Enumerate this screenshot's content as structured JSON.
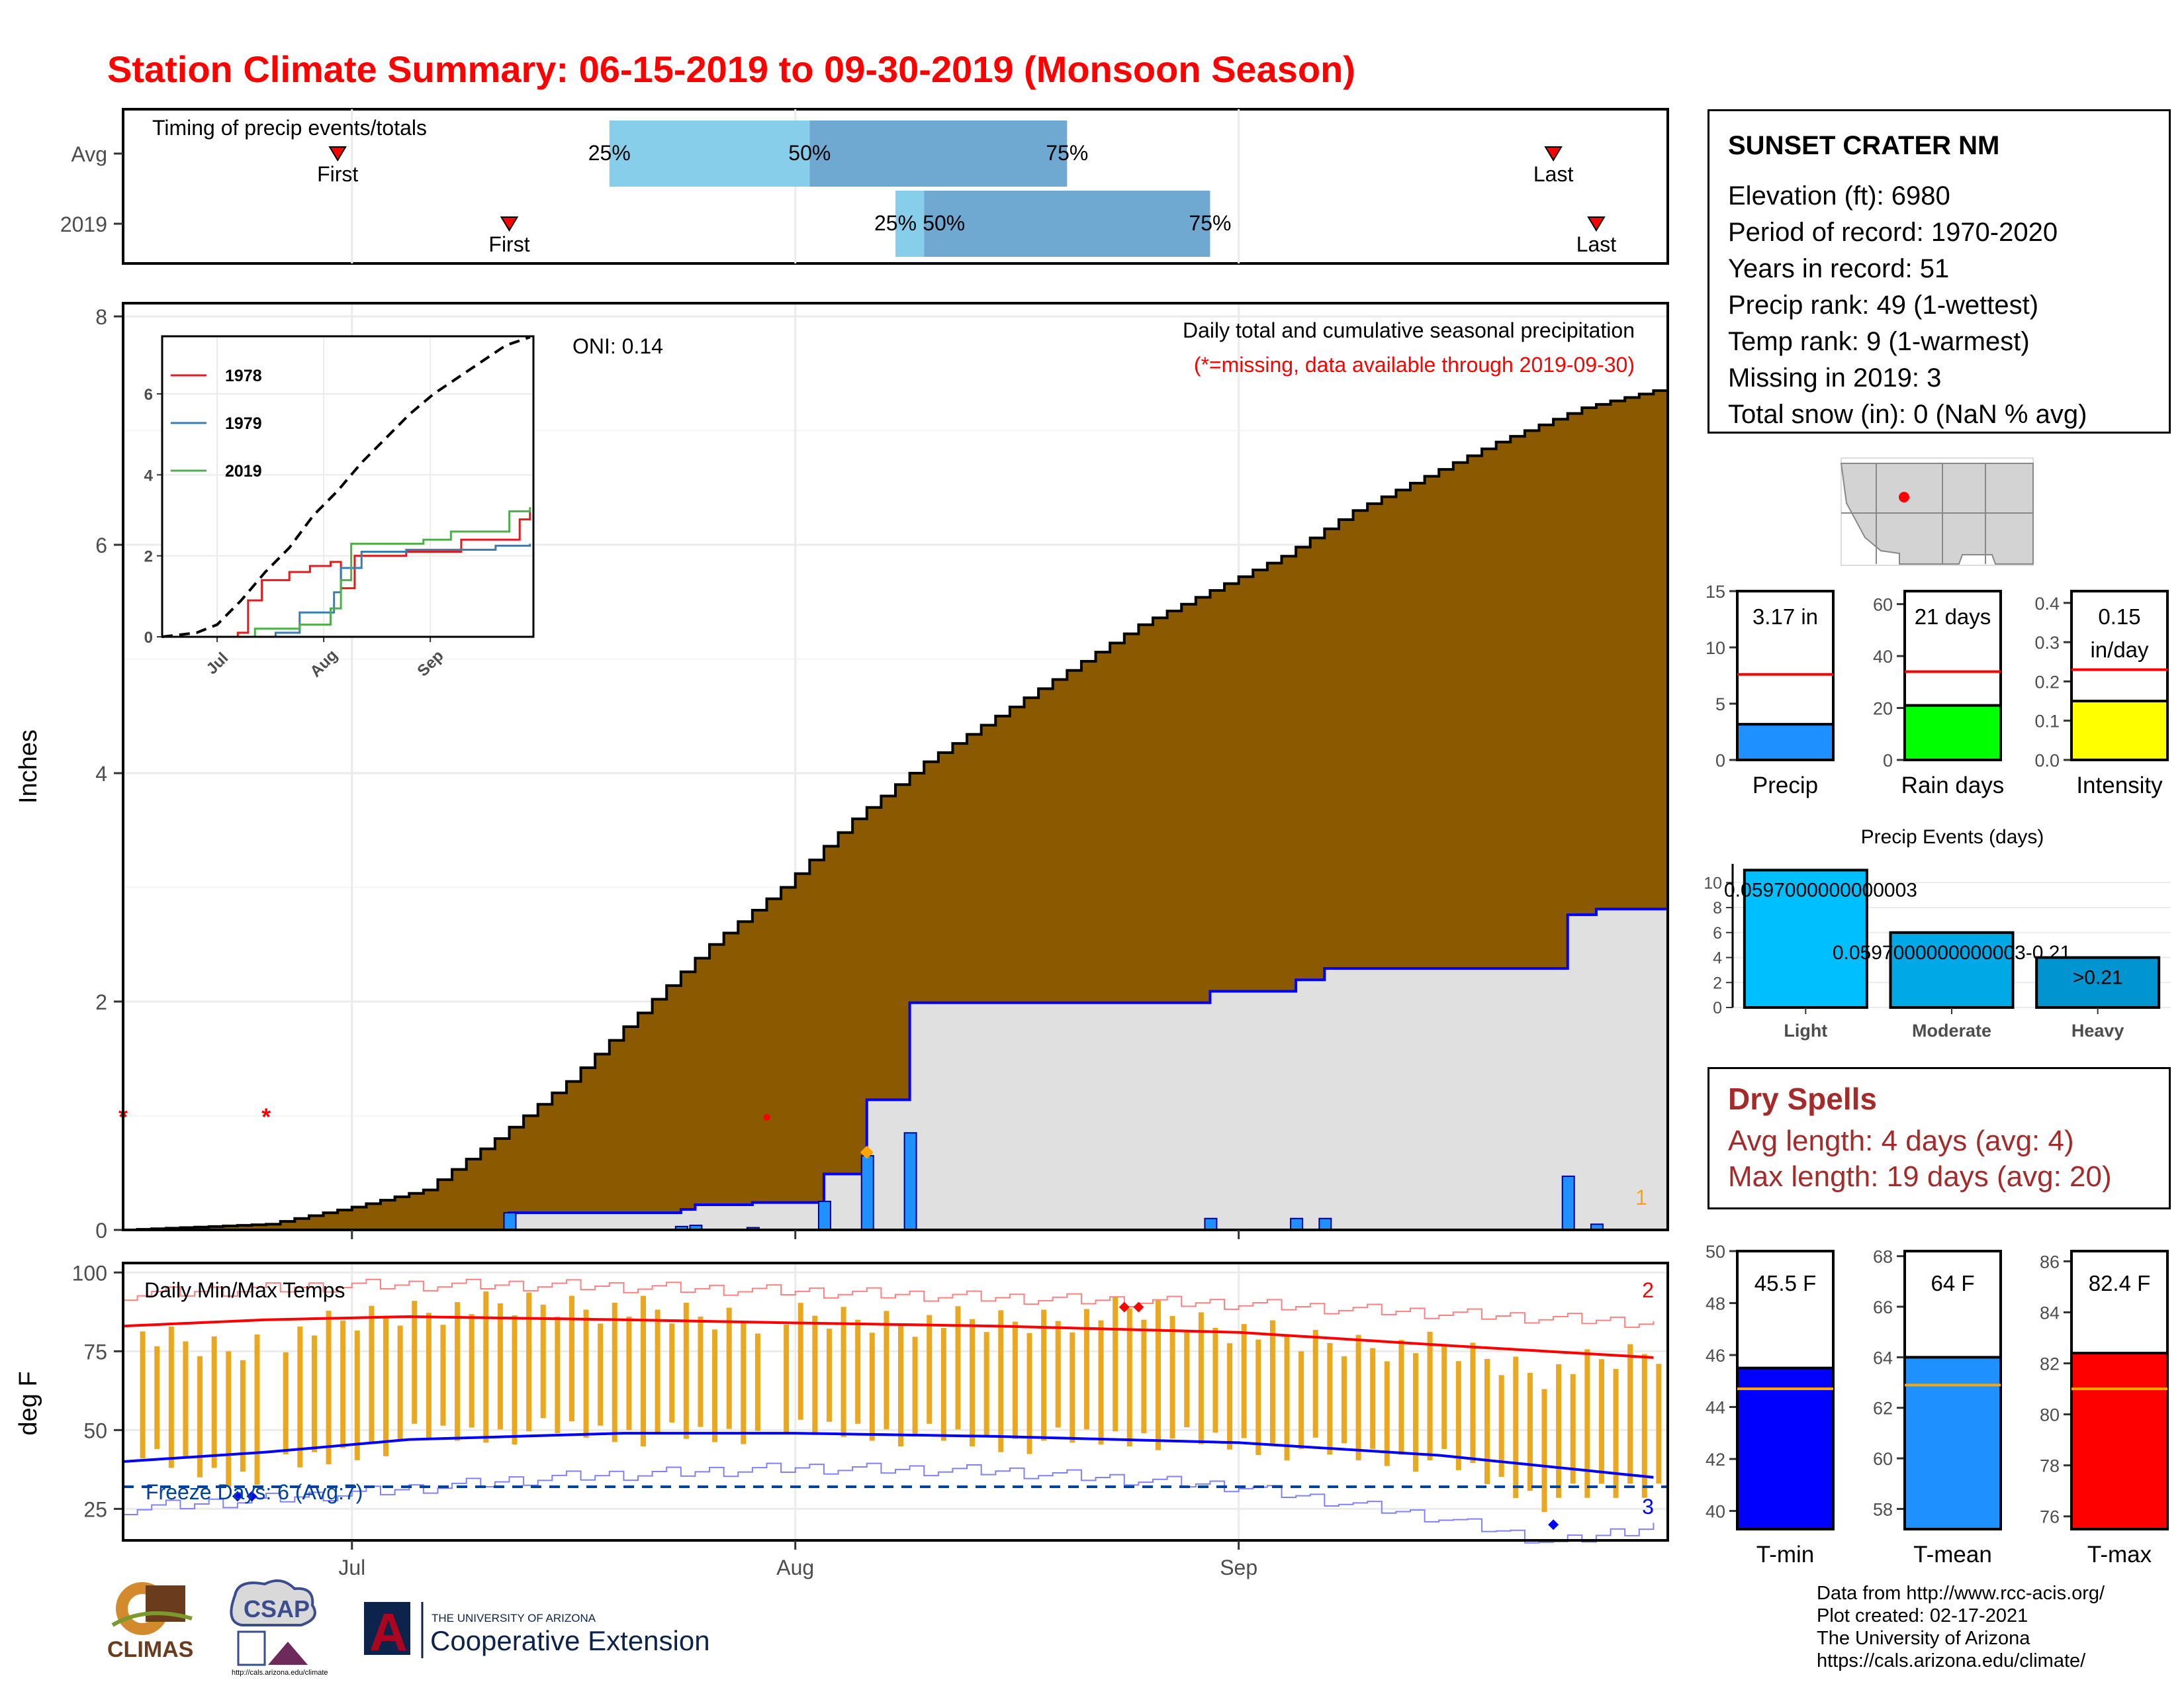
{
  "title": "Station Climate Summary: 06-15-2019 to 09-30-2019 (Monsoon Season)",
  "timing_panel": {
    "title": "Timing of precip events/totals",
    "rows": [
      {
        "label": "Avg",
        "first_date": "2019-06-30",
        "p25_date": "2019-07-19",
        "p50_date": "2019-08-02",
        "p75_date": "2019-08-20",
        "last_date": "2019-09-23",
        "first_text": "First",
        "last_text": "Last",
        "p25_text": "25%",
        "p50_text": "50%",
        "p75_text": "75%"
      },
      {
        "label": "2019",
        "first_date": "2019-07-12",
        "p25_date": "2019-08-08",
        "p50_date": "2019-08-10",
        "p75_date": "2019-08-30",
        "last_date": "2019-09-26",
        "first_text": "First",
        "last_text": "Last",
        "p25_text": "25%",
        "p50_text": "50%",
        "p75_text": "75%"
      }
    ],
    "colors": {
      "outer": "#87ceeb",
      "inner": "#6fa8d0",
      "marker": "#ff0000"
    }
  },
  "info": {
    "station": "SUNSET CRATER NM",
    "lines": [
      "Elevation (ft): 6980",
      "Period of record: 1970-2020",
      "Years in record: 51",
      "Precip rank: 49 (1-wettest)",
      "Temp rank: 9 (1-warmest)",
      "Missing in 2019: 3",
      "Total snow (in): 0 (NaN % avg)"
    ]
  },
  "chart_data": [
    {
      "id": "precip_main",
      "type": "area",
      "ylabel": "Inches",
      "ylim": [
        0,
        8
      ],
      "yticks": [
        0,
        2,
        4,
        6,
        8
      ],
      "xlim": [
        "2019-06-15",
        "2019-09-30"
      ],
      "xticks": [
        {
          "date": "2019-07-01",
          "label": "Jul"
        },
        {
          "date": "2019-08-01",
          "label": "Aug"
        },
        {
          "date": "2019-09-01",
          "label": "Sep"
        }
      ],
      "oni_label": "ONI: 0.14",
      "subtitle": "Daily total and cumulative seasonal precipitation",
      "missing_note": "(*=missing, data available through 2019-09-30)",
      "corner_label": "1",
      "avg_cumulative_anchors": [
        {
          "date": "2019-06-15",
          "value": 0.0
        },
        {
          "date": "2019-06-25",
          "value": 0.05
        },
        {
          "date": "2019-07-01",
          "value": 0.2
        },
        {
          "date": "2019-07-06",
          "value": 0.35
        },
        {
          "date": "2019-07-11",
          "value": 0.8
        },
        {
          "date": "2019-07-16",
          "value": 1.3
        },
        {
          "date": "2019-07-21",
          "value": 1.9
        },
        {
          "date": "2019-07-26",
          "value": 2.5
        },
        {
          "date": "2019-07-31",
          "value": 3.0
        },
        {
          "date": "2019-08-05",
          "value": 3.6
        },
        {
          "date": "2019-08-10",
          "value": 4.1
        },
        {
          "date": "2019-08-15",
          "value": 4.5
        },
        {
          "date": "2019-08-20",
          "value": 4.9
        },
        {
          "date": "2019-08-25",
          "value": 5.3
        },
        {
          "date": "2019-08-30",
          "value": 5.6
        },
        {
          "date": "2019-09-04",
          "value": 5.9
        },
        {
          "date": "2019-09-09",
          "value": 6.3
        },
        {
          "date": "2019-09-14",
          "value": 6.6
        },
        {
          "date": "2019-09-19",
          "value": 6.9
        },
        {
          "date": "2019-09-25",
          "value": 7.2
        },
        {
          "date": "2019-09-30",
          "value": 7.35
        }
      ],
      "daily_precip": [
        {
          "date": "2019-07-12",
          "value": 0.15
        },
        {
          "date": "2019-07-24",
          "value": 0.03
        },
        {
          "date": "2019-07-25",
          "value": 0.04
        },
        {
          "date": "2019-07-29",
          "value": 0.02
        },
        {
          "date": "2019-08-03",
          "value": 0.25
        },
        {
          "date": "2019-08-06",
          "value": 0.65
        },
        {
          "date": "2019-08-09",
          "value": 0.85
        },
        {
          "date": "2019-08-30",
          "value": 0.1
        },
        {
          "date": "2019-09-05",
          "value": 0.1
        },
        {
          "date": "2019-09-07",
          "value": 0.1
        },
        {
          "date": "2019-09-24",
          "value": 0.47
        },
        {
          "date": "2019-09-26",
          "value": 0.05
        }
      ],
      "missing_days": [
        {
          "date": "2019-06-15",
          "marker": "*"
        },
        {
          "date": "2019-06-25",
          "marker": "*"
        },
        {
          "date": "2019-07-30",
          "marker": "•"
        }
      ],
      "highlight_point": {
        "date": "2019-08-06",
        "value": 0.68
      },
      "colors": {
        "avg_fill": "#8b5a00",
        "obs_fill": "#e0e0e0",
        "obs_line": "#0000ff",
        "bar": "#1e90ff",
        "missing": "#ff0000",
        "point": "#ffa500",
        "corner": "#ffa500"
      }
    },
    {
      "id": "inset_cumulative",
      "type": "line",
      "ylim": [
        0,
        7.5
      ],
      "yticks": [
        0,
        2,
        4,
        6
      ],
      "xticks": [
        {
          "date": "2019-07-01",
          "label": "Jul"
        },
        {
          "date": "2019-08-01",
          "label": "Aug"
        },
        {
          "date": "2019-09-01",
          "label": "Sep"
        }
      ],
      "series": [
        {
          "name": "1978",
          "color": "#e41a1c",
          "points": [
            [
              "2019-06-15",
              0
            ],
            [
              "2019-07-07",
              0.1
            ],
            [
              "2019-07-10",
              0.9
            ],
            [
              "2019-07-14",
              1.4
            ],
            [
              "2019-07-22",
              1.6
            ],
            [
              "2019-07-28",
              1.75
            ],
            [
              "2019-08-03",
              1.85
            ],
            [
              "2019-08-06",
              1.2
            ],
            [
              "2019-08-10",
              2.0
            ],
            [
              "2019-08-25",
              2.1
            ],
            [
              "2019-09-10",
              2.4
            ],
            [
              "2019-09-27",
              2.9
            ],
            [
              "2019-09-30",
              3.1
            ]
          ]
        },
        {
          "name": "1979",
          "color": "#377eb8",
          "points": [
            [
              "2019-06-15",
              0
            ],
            [
              "2019-07-18",
              0.1
            ],
            [
              "2019-07-25",
              0.6
            ],
            [
              "2019-08-04",
              1.1
            ],
            [
              "2019-08-06",
              1.7
            ],
            [
              "2019-08-12",
              2.1
            ],
            [
              "2019-08-25",
              2.15
            ],
            [
              "2019-09-20",
              2.25
            ],
            [
              "2019-09-30",
              2.3
            ]
          ]
        },
        {
          "name": "2019",
          "color": "#4daf4a",
          "points": [
            [
              "2019-06-15",
              0
            ],
            [
              "2019-07-12",
              0.2
            ],
            [
              "2019-07-25",
              0.3
            ],
            [
              "2019-08-03",
              0.7
            ],
            [
              "2019-08-06",
              1.4
            ],
            [
              "2019-08-09",
              2.3
            ],
            [
              "2019-08-30",
              2.4
            ],
            [
              "2019-09-07",
              2.6
            ],
            [
              "2019-09-24",
              3.1
            ],
            [
              "2019-09-30",
              3.2
            ]
          ]
        }
      ],
      "average_dashed": [
        [
          "2019-06-15",
          0
        ],
        [
          "2019-06-25",
          0.1
        ],
        [
          "2019-07-01",
          0.3
        ],
        [
          "2019-07-08",
          0.9
        ],
        [
          "2019-07-15",
          1.6
        ],
        [
          "2019-07-22",
          2.2
        ],
        [
          "2019-07-29",
          3.0
        ],
        [
          "2019-08-05",
          3.6
        ],
        [
          "2019-08-12",
          4.3
        ],
        [
          "2019-08-19",
          4.9
        ],
        [
          "2019-08-26",
          5.5
        ],
        [
          "2019-09-02",
          6.0
        ],
        [
          "2019-09-09",
          6.4
        ],
        [
          "2019-09-16",
          6.8
        ],
        [
          "2019-09-23",
          7.2
        ],
        [
          "2019-09-30",
          7.4
        ]
      ]
    },
    {
      "id": "bar_precip",
      "type": "bar",
      "categories": [
        "Precip"
      ],
      "values": [
        3.17
      ],
      "average": 7.6,
      "ylim": [
        0,
        15
      ],
      "yticks": [
        0,
        5,
        10,
        15
      ],
      "label": "3.17 in",
      "color": "#1e90ff"
    },
    {
      "id": "bar_raindays",
      "type": "bar",
      "categories": [
        "Rain days"
      ],
      "values": [
        21
      ],
      "average": 34,
      "ylim": [
        0,
        65
      ],
      "yticks": [
        0,
        20,
        40,
        60
      ],
      "label": "21 days",
      "color": "#00ff00"
    },
    {
      "id": "bar_intensity",
      "type": "bar",
      "categories": [
        "Intensity"
      ],
      "values": [
        0.15
      ],
      "average": 0.23,
      "ylim": [
        0,
        0.43
      ],
      "yticks": [
        0.0,
        0.1,
        0.2,
        0.3,
        0.4
      ],
      "ytick_labels": [
        "0.0",
        "0.1",
        "0.2",
        "0.3",
        "0.4"
      ],
      "label_line1": "0.15",
      "label_line2": "in/day",
      "color": "#ffff00"
    },
    {
      "id": "precip_events",
      "type": "bar",
      "title": "Precip Events (days)",
      "categories": [
        "Light",
        "Moderate",
        "Heavy"
      ],
      "values": [
        11,
        6,
        4
      ],
      "bar_labels": [
        "0.0597000000000003",
        "0.0597000000000003-0.21",
        ">0.21"
      ],
      "ylim": [
        0,
        11.5
      ],
      "yticks": [
        0,
        2,
        4,
        6,
        8,
        10
      ],
      "colors": [
        "#00bfff",
        "#00a8e6",
        "#0094d0"
      ]
    },
    {
      "id": "temps",
      "type": "line",
      "title": "Daily Min/Max Temps",
      "ylabel": "deg F",
      "ylim": [
        15,
        103
      ],
      "yticks": [
        25,
        50,
        75,
        100
      ],
      "freeze_label": "Freeze Days: 6 (Avg:7)",
      "freeze_line": 32,
      "label_top": "2",
      "label_bottom": "3",
      "avg_max": [
        [
          "2019-06-15",
          83
        ],
        [
          "2019-06-25",
          85
        ],
        [
          "2019-07-05",
          86
        ],
        [
          "2019-07-20",
          85
        ],
        [
          "2019-08-01",
          84
        ],
        [
          "2019-08-15",
          83
        ],
        [
          "2019-09-01",
          81
        ],
        [
          "2019-09-15",
          77
        ],
        [
          "2019-09-30",
          73
        ]
      ],
      "avg_min": [
        [
          "2019-06-15",
          40
        ],
        [
          "2019-06-25",
          43
        ],
        [
          "2019-07-05",
          47
        ],
        [
          "2019-07-20",
          49
        ],
        [
          "2019-08-01",
          49
        ],
        [
          "2019-08-15",
          48
        ],
        [
          "2019-09-01",
          46
        ],
        [
          "2019-09-15",
          42
        ],
        [
          "2019-09-30",
          35
        ]
      ],
      "rec_max": [
        [
          "2019-06-15",
          93
        ],
        [
          "2019-07-01",
          96
        ],
        [
          "2019-07-15",
          96
        ],
        [
          "2019-08-01",
          94
        ],
        [
          "2019-08-15",
          92
        ],
        [
          "2019-09-01",
          90
        ],
        [
          "2019-09-15",
          87
        ],
        [
          "2019-09-30",
          84
        ]
      ],
      "rec_min": [
        [
          "2019-06-15",
          25
        ],
        [
          "2019-07-01",
          30
        ],
        [
          "2019-07-15",
          35
        ],
        [
          "2019-08-01",
          38
        ],
        [
          "2019-08-15",
          37
        ],
        [
          "2019-09-01",
          32
        ],
        [
          "2019-09-15",
          22
        ],
        [
          "2019-09-23",
          14
        ],
        [
          "2019-09-30",
          20
        ]
      ],
      "daily_range_anchors": [
        {
          "date": "2019-06-15",
          "min": 42,
          "max": 80
        },
        {
          "date": "2019-06-22",
          "min": 35,
          "max": 75
        },
        {
          "date": "2019-06-28",
          "min": 40,
          "max": 82
        },
        {
          "date": "2019-07-05",
          "min": 48,
          "max": 88
        },
        {
          "date": "2019-07-15",
          "min": 50,
          "max": 90
        },
        {
          "date": "2019-07-25",
          "min": 48,
          "max": 86
        },
        {
          "date": "2019-08-05",
          "min": 50,
          "max": 85
        },
        {
          "date": "2019-08-15",
          "min": 46,
          "max": 84
        },
        {
          "date": "2019-08-25",
          "min": 48,
          "max": 88
        },
        {
          "date": "2019-09-05",
          "min": 44,
          "max": 78
        },
        {
          "date": "2019-09-15",
          "min": 40,
          "max": 76
        },
        {
          "date": "2019-09-22",
          "min": 28,
          "max": 68
        },
        {
          "date": "2019-09-30",
          "min": 32,
          "max": 75
        }
      ],
      "record_high_marks": [
        [
          "2019-08-24",
          89
        ],
        [
          "2019-08-25",
          89
        ]
      ],
      "record_low_marks": [
        [
          "2019-06-23",
          29
        ],
        [
          "2019-06-24",
          29
        ],
        [
          "2019-09-23",
          20
        ]
      ],
      "colors": {
        "bars": "#e9a820",
        "avg_max": "#ff0000",
        "avg_min": "#0000ff",
        "rec_max": "#ff8080",
        "rec_min": "#8080ff",
        "freeze": "#00429d"
      }
    },
    {
      "id": "bar_tmin",
      "type": "bar",
      "categories": [
        "T-min"
      ],
      "values": [
        45.5
      ],
      "average": 44.7,
      "ylim": [
        39.3,
        50
      ],
      "yticks": [
        40,
        42,
        44,
        46,
        48,
        50
      ],
      "label": "45.5 F",
      "color": "#0000ff"
    },
    {
      "id": "bar_tmean",
      "type": "bar",
      "categories": [
        "T-mean"
      ],
      "values": [
        64
      ],
      "average": 62.9,
      "ylim": [
        57.2,
        68.2
      ],
      "yticks": [
        58,
        60,
        62,
        64,
        66,
        68
      ],
      "label": "64 F",
      "color": "#1e90ff"
    },
    {
      "id": "bar_tmax",
      "type": "bar",
      "categories": [
        "T-max"
      ],
      "values": [
        82.4
      ],
      "average": 81.0,
      "ylim": [
        75.5,
        86.4
      ],
      "yticks": [
        76,
        78,
        80,
        82,
        84,
        86
      ],
      "label": "82.4 F",
      "color": "#ff0000"
    }
  ],
  "dry_spells": {
    "title": "Dry Spells",
    "avg_line": "Avg length: 4 days (avg: 4)",
    "max_line": "Max length: 19 days (avg: 20)"
  },
  "credits": [
    "Data from http://www.rcc-acis.org/",
    "Plot created: 02-17-2021",
    "The University of Arizona",
    "https://cals.arizona.edu/climate/"
  ],
  "logos": {
    "climas_text": "CLIMAS",
    "csap_text": "CSAP",
    "csap_url": "http://cals.arizona.edu/climate",
    "ua_letter": "A",
    "ua_small": "THE UNIVERSITY OF ARIZONA",
    "ua_large": "Cooperative Extension"
  }
}
